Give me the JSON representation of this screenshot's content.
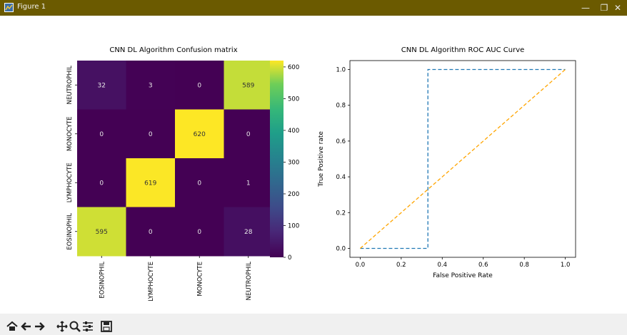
{
  "window": {
    "title": "Figure 1",
    "controls": [
      "—",
      "❐",
      "✕"
    ]
  },
  "toolbar": {
    "buttons": [
      "home-icon",
      "back-arrow-icon",
      "forward-arrow-icon",
      "pan-icon",
      "zoom-icon",
      "configure-subplots-icon",
      "save-icon"
    ]
  },
  "chart_data": [
    {
      "type": "heatmap",
      "title": "CNN DL Algorithm Confusion matrix",
      "x_categories": [
        "EOSINOPHIL",
        "LYMPHOCYTE",
        "MONOCYTE",
        "NEUTROPHIL"
      ],
      "y_categories": [
        "NEUTROPHIL",
        "MONOCYTE",
        "LYMPHOCYTE",
        "EOSINOPHIL"
      ],
      "values": [
        [
          32,
          3,
          0,
          589
        ],
        [
          0,
          0,
          620,
          0
        ],
        [
          0,
          619,
          0,
          1
        ],
        [
          595,
          0,
          0,
          28
        ]
      ],
      "colorbar": {
        "min": 0,
        "max": 620,
        "ticks": [
          "0",
          "100",
          "200",
          "300",
          "400",
          "500",
          "600"
        ],
        "colormap": "viridis"
      }
    },
    {
      "type": "line",
      "title": "CNN DL Algorithm ROC AUC Curve",
      "xlabel": "False Positive Rate",
      "ylabel": "True Positive rate",
      "xlim": [
        -0.05,
        1.05
      ],
      "ylim": [
        -0.05,
        1.05
      ],
      "xticks": [
        "0.0",
        "0.2",
        "0.4",
        "0.6",
        "0.8",
        "1.0"
      ],
      "yticks": [
        "0.0",
        "0.2",
        "0.4",
        "0.6",
        "0.8",
        "1.0"
      ],
      "series": [
        {
          "x": [
            0,
            0.33,
            0.33,
            1.0
          ],
          "y": [
            0,
            0,
            1.0,
            1.0
          ],
          "color": "#1f77b4",
          "style": "dashed"
        },
        {
          "x": [
            0,
            1.0
          ],
          "y": [
            0,
            1.0
          ],
          "color": "#ffa500",
          "style": "dashed"
        }
      ]
    }
  ]
}
